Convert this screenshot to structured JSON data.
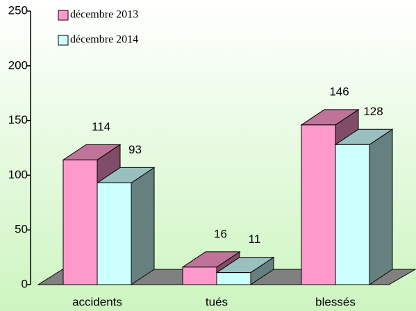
{
  "chart_data": {
    "type": "bar3d",
    "categories": [
      "accidents",
      "tués",
      "blessés"
    ],
    "series": [
      {
        "name": "décembre 2013",
        "color": "#ff99cc",
        "values": [
          114,
          16,
          146
        ]
      },
      {
        "name": "décembre 2014",
        "color": "#ccffff",
        "values": [
          93,
          11,
          128
        ]
      }
    ],
    "ylim": [
      0,
      250
    ],
    "yticks": [
      0,
      50,
      100,
      150,
      200,
      250
    ],
    "legend": "top-left"
  }
}
